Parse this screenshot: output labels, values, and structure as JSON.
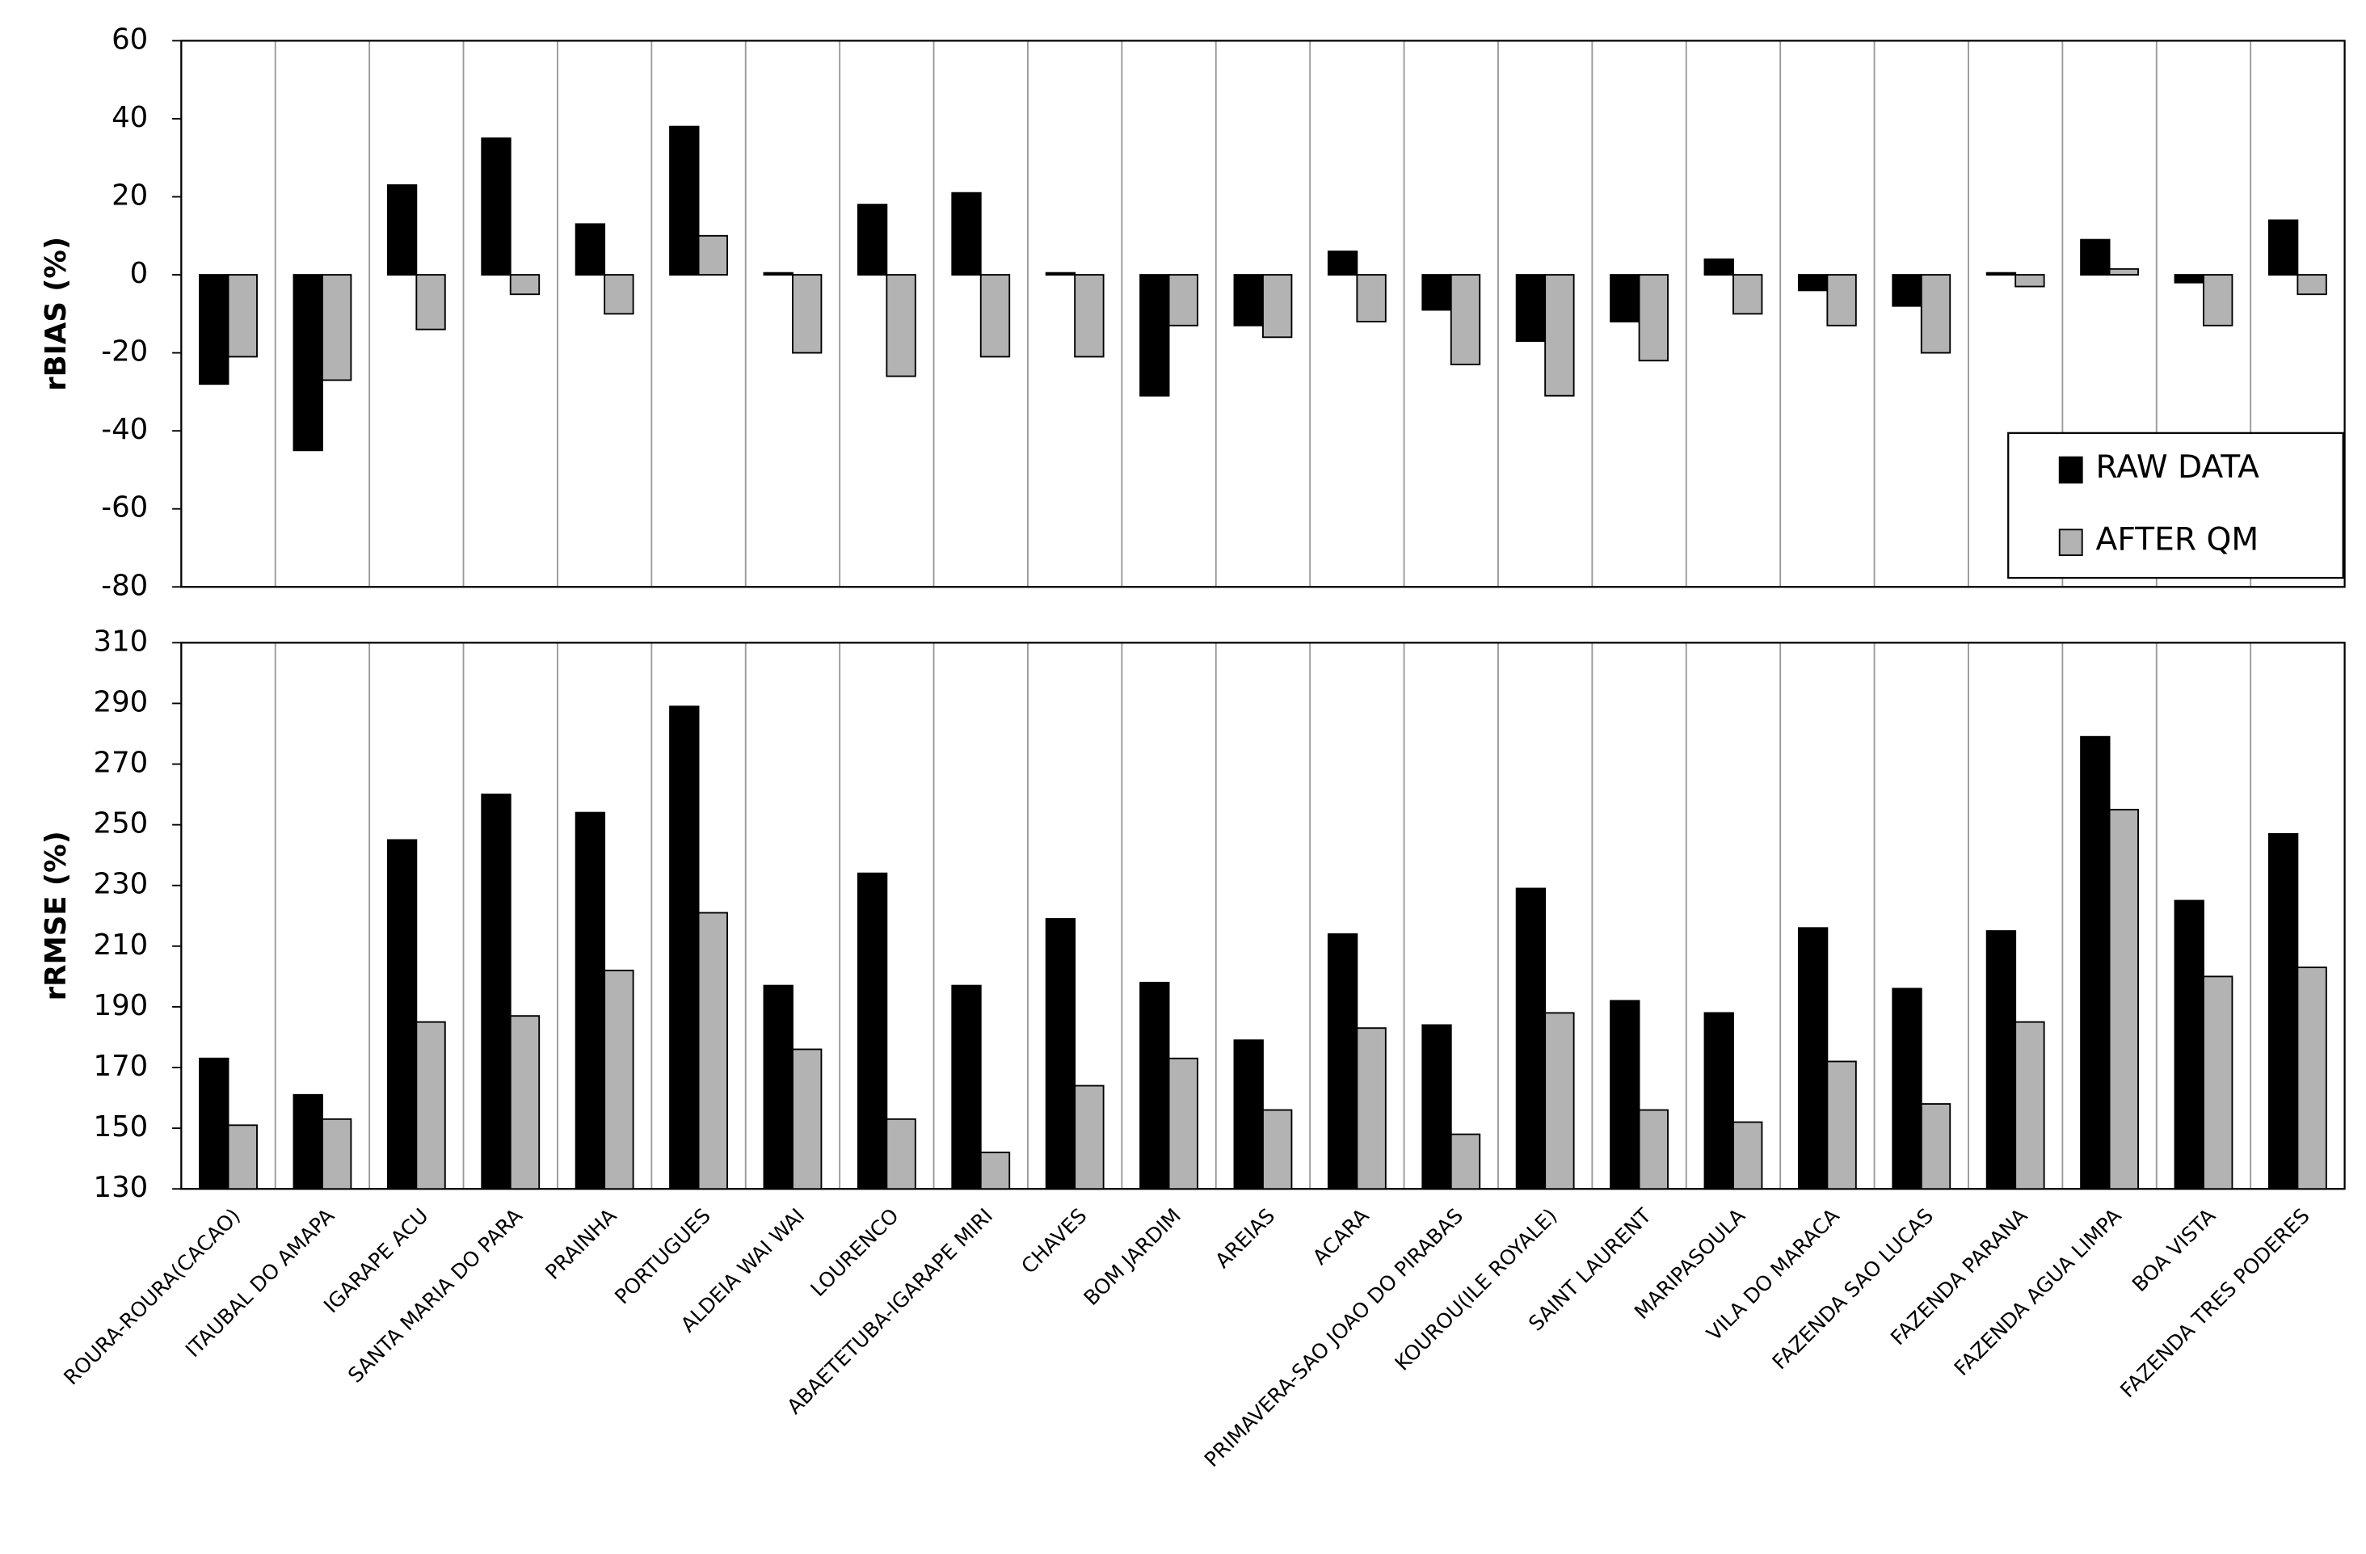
{
  "chart_data": [
    {
      "type": "bar",
      "y_label": "rBIAS  (%)",
      "ylim": [
        -80,
        60
      ],
      "yticks": [
        -80,
        -60,
        -40,
        -20,
        0,
        20,
        40,
        60
      ],
      "legend": "lower right",
      "series": [
        {
          "name": "RAW DATA",
          "color": "#000000",
          "values": [
            -28,
            -45,
            23,
            35,
            13,
            38,
            0.5,
            18,
            21,
            0.5,
            -31,
            -13,
            6,
            -9,
            -17,
            -12,
            4,
            -4,
            -8,
            0.5,
            9,
            -2,
            14
          ]
        },
        {
          "name": "AFTER QM",
          "color": "#b3b3b3",
          "values": [
            -21,
            -27,
            -14,
            -5,
            -10,
            10,
            -20,
            -26,
            -21,
            -21,
            -13,
            -16,
            -12,
            -23,
            -31,
            -22,
            -10,
            -13,
            -20,
            -3,
            1.5,
            -13,
            -5
          ]
        }
      ]
    },
    {
      "type": "bar",
      "y_label": "rRMSE (%)",
      "ylim": [
        130,
        310
      ],
      "yticks": [
        130,
        150,
        170,
        190,
        210,
        230,
        250,
        270,
        290,
        310
      ],
      "categories": [
        "ROURA-ROURA(CACAO)",
        "ITAUBAL DO AMAPA",
        "IGARAPE ACU",
        "SANTA MARIA DO PARA",
        "PRAINHA",
        "PORTUGUES",
        "ALDEIA WAI WAI",
        "LOURENCO",
        "ABAETETUBA-IGARAPE MIRI",
        "CHAVES",
        "BOM JARDIM",
        "AREIAS",
        "ACARA",
        "PRIMAVERA-SAO JOAO DO PIRABAS",
        "KOUROU(ILE ROYALE)",
        "SAINT LAURENT",
        "MARIPASOULA",
        "VILA DO MARACA",
        "FAZENDA SAO LUCAS",
        "FAZENDA PARANA",
        "FAZENDA AGUA LIMPA",
        "BOA VISTA",
        "FAZENDA TRES PODERES"
      ],
      "series": [
        {
          "color": "#000000",
          "values": [
            173,
            161,
            245,
            260,
            254,
            289,
            197,
            234,
            197,
            219,
            198,
            179,
            214,
            184,
            229,
            192,
            188,
            216,
            196,
            215,
            279,
            225,
            247
          ]
        },
        {
          "color": "#b3b3b3",
          "values": [
            151,
            153,
            185,
            187,
            202,
            221,
            176,
            153,
            142,
            164,
            173,
            156,
            183,
            148,
            188,
            156,
            152,
            172,
            158,
            185,
            255,
            200,
            203
          ]
        }
      ]
    }
  ]
}
